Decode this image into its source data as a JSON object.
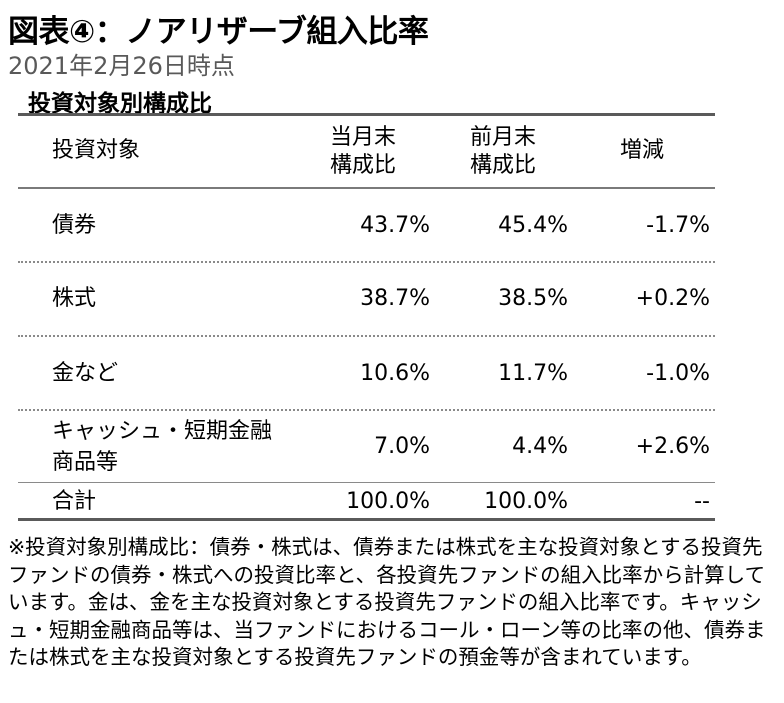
{
  "header": {
    "title": "図表④：ノアリザーブ組入比率",
    "date": "2021年2月26日時点",
    "section": "投資対象別構成比"
  },
  "table": {
    "columns": {
      "asset": "投資対象",
      "current_l1": "当月末",
      "current_l2": "構成比",
      "previous_l1": "前月末",
      "previous_l2": "構成比",
      "change": "増減"
    },
    "rows": [
      {
        "asset": "債券",
        "asset_l2": "",
        "current": "43.7%",
        "previous": "45.4%",
        "change": "-1.7%"
      },
      {
        "asset": "株式",
        "asset_l2": "",
        "current": "38.7%",
        "previous": "38.5%",
        "change": "+0.2%"
      },
      {
        "asset": "金など",
        "asset_l2": "",
        "current": "10.6%",
        "previous": "11.7%",
        "change": "-1.0%"
      },
      {
        "asset": "キャッシュ・短期金融",
        "asset_l2": "商品等",
        "current": "7.0%",
        "previous": "4.4%",
        "change": "+2.6%"
      }
    ],
    "total": {
      "asset": "合計",
      "current": "100.0%",
      "previous": "100.0%",
      "change": "--"
    }
  },
  "note": "※投資対象別構成比：債券・株式は、債券または株式を主な投資対象とする投資先ファンドの債券・株式への投資比率と、各投資先ファンドの組入比率から計算しています。金は、金を主な投資対象とする投資先ファンドの組入比率です。キャッシュ・短期金融商品等は、当ファンドにおけるコール・ローン等の比率の他、債券または株式を主な投資対象とする投資先ファンドの預金等が含まれています。"
}
